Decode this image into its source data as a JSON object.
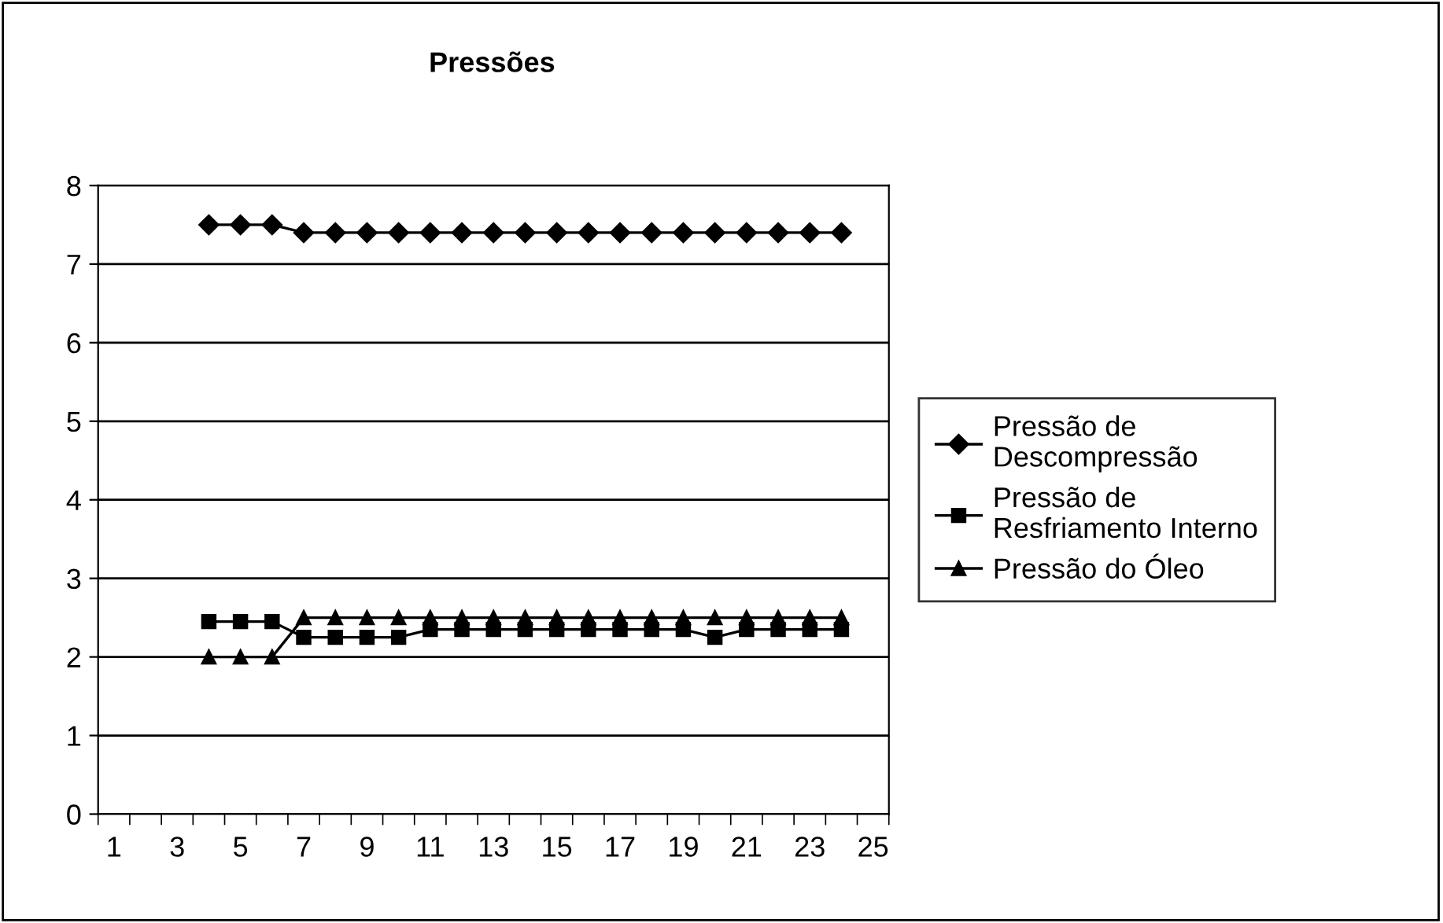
{
  "chart_data": {
    "type": "line",
    "title": "Pressões",
    "categories": [
      "1",
      null,
      "3",
      null,
      "5",
      null,
      "7",
      null,
      "9",
      null,
      "11",
      null,
      "13",
      null,
      "15",
      null,
      "17",
      null,
      "19",
      null,
      "21",
      null,
      "23",
      null,
      "25"
    ],
    "series": [
      {
        "name": "Pressão de\nDescompressão",
        "color": "#000000",
        "marker": "diamond",
        "values": [
          null,
          null,
          null,
          7.5,
          7.5,
          7.5,
          7.4,
          7.4,
          7.4,
          7.4,
          7.4,
          7.4,
          7.4,
          7.4,
          7.4,
          7.4,
          7.4,
          7.4,
          7.4,
          7.4,
          7.4,
          7.4,
          7.4,
          7.4,
          null
        ]
      },
      {
        "name": "Pressão de\nResfriamento Interno",
        "color": "#000000",
        "marker": "square",
        "values": [
          null,
          null,
          null,
          2.45,
          2.45,
          2.45,
          2.25,
          2.25,
          2.25,
          2.25,
          2.35,
          2.35,
          2.35,
          2.35,
          2.35,
          2.35,
          2.35,
          2.35,
          2.35,
          2.25,
          2.35,
          2.35,
          2.35,
          2.35,
          null
        ]
      },
      {
        "name": "Pressão do Óleo",
        "color": "#000000",
        "marker": "triangle",
        "values": [
          null,
          null,
          null,
          2,
          2,
          2,
          2.5,
          2.5,
          2.5,
          2.5,
          2.5,
          2.5,
          2.5,
          2.5,
          2.5,
          2.5,
          2.5,
          2.5,
          2.5,
          2.5,
          2.5,
          2.5,
          2.5,
          2.5,
          null
        ]
      }
    ],
    "ylim": [
      0,
      8
    ],
    "yticks": [
      0,
      1,
      2,
      3,
      4,
      5,
      6,
      7,
      8
    ],
    "grid": "y",
    "legend": "right",
    "line_style": "solid"
  }
}
